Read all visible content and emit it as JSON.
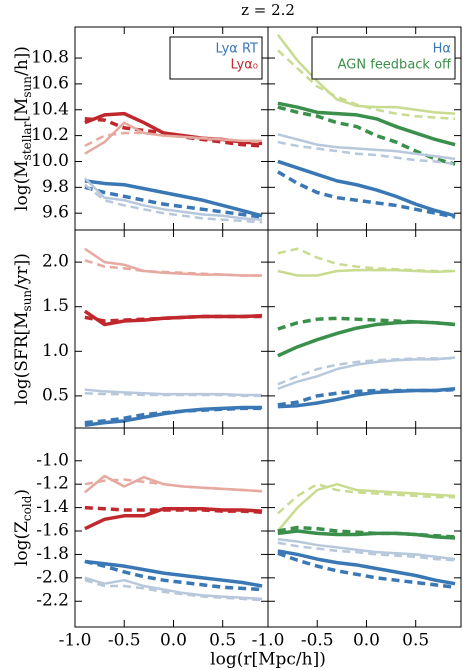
{
  "title": "z = 2.2",
  "xlabel": "log(r[Mpc/h])",
  "chart_data": [
    {
      "type": "line",
      "ylabel": [
        "log(M",
        "stellar",
        "[M",
        "sun",
        "/h])"
      ],
      "legend": "upper right",
      "x": [
        -0.9,
        -0.7,
        -0.5,
        -0.3,
        -0.1,
        0.1,
        0.3,
        0.5,
        0.7,
        0.9
      ],
      "xlim": [
        -1,
        0.96
      ],
      "xticks": [
        -0.5,
        0,
        0.5
      ],
      "ylim": [
        9.47,
        11.04
      ],
      "yticks": [
        10.8,
        10.6,
        10.4,
        10.2,
        {
          "value": 10,
          "label": "10.0"
        },
        9.8,
        9.6
      ],
      "series": [
        {
          "name": "Lyα RT",
          "color": "#3a78b5",
          "dashed": false,
          "linewidth": 3.5,
          "values": [
            9.85,
            9.83,
            9.82,
            9.79,
            9.76,
            9.73,
            9.7,
            9.66,
            9.62,
            9.58
          ]
        },
        {
          "name": "Lyα₀",
          "color": "#c0282d",
          "dashed": false,
          "linewidth": 3.5,
          "values": [
            10.3,
            10.36,
            10.37,
            10.3,
            10.22,
            10.2,
            10.18,
            10.17,
            10.15,
            10.14
          ]
        },
        {
          "color": "#c0282d",
          "dashed": true,
          "linewidth": 3.5,
          "values": [
            10.33,
            10.32,
            10.26,
            10.24,
            10.22,
            10.19,
            10.17,
            10.15,
            10.13,
            10.12
          ]
        },
        {
          "color": "#e6a9a0",
          "dashed": false,
          "linewidth": 2.5,
          "values": [
            10.06,
            10.15,
            10.3,
            10.22,
            10.2,
            10.19,
            10.18,
            10.17,
            10.16,
            10.16
          ]
        },
        {
          "color": "#e6a9a0",
          "dashed": true,
          "linewidth": 2.5,
          "values": [
            10.12,
            10.2,
            10.22,
            10.22,
            10.2,
            10.19,
            10.18,
            10.17,
            10.16,
            10.15
          ]
        },
        {
          "color": "#3a78b5",
          "dashed": true,
          "linewidth": 3.5,
          "values": [
            9.8,
            9.76,
            9.73,
            9.7,
            9.67,
            9.65,
            9.63,
            9.61,
            9.59,
            9.57
          ]
        },
        {
          "color": "#b8c8dc",
          "dashed": false,
          "linewidth": 2.5,
          "values": [
            9.87,
            9.72,
            9.7,
            9.66,
            9.63,
            9.61,
            9.59,
            9.58,
            9.56,
            9.55
          ]
        },
        {
          "color": "#b8c8dc",
          "dashed": true,
          "linewidth": 2.5,
          "values": [
            9.82,
            9.7,
            9.66,
            9.63,
            9.6,
            9.58,
            9.56,
            9.55,
            9.54,
            9.53
          ]
        }
      ]
    },
    {
      "type": "line",
      "legend": "upper right",
      "x": [
        -0.9,
        -0.7,
        -0.5,
        -0.3,
        -0.1,
        0.1,
        0.3,
        0.5,
        0.7,
        0.9
      ],
      "xlim": [
        -1,
        0.96
      ],
      "xticks": [
        -0.5,
        0,
        0.5
      ],
      "ylim": [
        9.47,
        11.04
      ],
      "yticks": [
        10.8,
        10.6,
        10.4,
        10.2,
        10,
        9.8,
        9.6
      ],
      "series": [
        {
          "name": "Hα",
          "color": "#3a78b5",
          "dashed": false,
          "linewidth": 3.5,
          "values": [
            10,
            9.95,
            9.9,
            9.85,
            9.82,
            9.78,
            9.73,
            9.67,
            9.62,
            9.58
          ]
        },
        {
          "name": "AGN feedback off",
          "color": "#3a8f4a",
          "dashed": false,
          "linewidth": 3.5,
          "values": [
            10.45,
            10.42,
            10.38,
            10.37,
            10.36,
            10.33,
            10.27,
            10.22,
            10.17,
            10.13
          ]
        },
        {
          "color": "#c8dc90",
          "dashed": false,
          "linewidth": 2.5,
          "values": [
            10.98,
            10.78,
            10.62,
            10.48,
            10.43,
            10.42,
            10.42,
            10.4,
            10.38,
            10.37
          ]
        },
        {
          "color": "#c8dc90",
          "dashed": true,
          "linewidth": 2.5,
          "values": [
            10.86,
            10.72,
            10.58,
            10.5,
            10.44,
            10.4,
            10.37,
            10.35,
            10.34,
            10.33
          ]
        },
        {
          "color": "#3a8f4a",
          "dashed": true,
          "linewidth": 3.5,
          "values": [
            10.42,
            10.38,
            10.35,
            10.3,
            10.27,
            10.2,
            10.15,
            10.08,
            10.02,
            9.98
          ]
        },
        {
          "color": "#b8c8dc",
          "dashed": false,
          "linewidth": 2.5,
          "values": [
            10.21,
            10.17,
            10.13,
            10.11,
            10.1,
            10.09,
            10.08,
            10.06,
            10.04,
            10.02
          ]
        },
        {
          "color": "#b8c8dc",
          "dashed": true,
          "linewidth": 2.5,
          "values": [
            10.15,
            10.12,
            10.1,
            10.08,
            10.06,
            10.05,
            10.03,
            10.01,
            10,
            9.98
          ]
        },
        {
          "color": "#3a78b5",
          "dashed": true,
          "linewidth": 3.5,
          "values": [
            9.92,
            9.83,
            9.76,
            9.72,
            9.7,
            9.68,
            9.66,
            9.63,
            9.6,
            9.57
          ]
        }
      ]
    },
    {
      "type": "line",
      "ylabel": [
        "log(SFR[M",
        "sun",
        "/yr])"
      ],
      "x": [
        -0.9,
        -0.7,
        -0.5,
        -0.3,
        -0.1,
        0.1,
        0.3,
        0.5,
        0.7,
        0.9
      ],
      "xlim": [
        -1,
        0.96
      ],
      "xticks": [
        -0.5,
        0,
        0.5
      ],
      "ylim": [
        0.14,
        2.36
      ],
      "yticks": [
        {
          "value": 2,
          "label": "2.0"
        },
        1.5,
        {
          "value": 1,
          "label": "1.0"
        },
        0.5
      ],
      "series": [
        {
          "color": "#e6a9a0",
          "dashed": false,
          "linewidth": 2.5,
          "values": [
            2.15,
            2,
            1.97,
            1.9,
            1.88,
            1.87,
            1.86,
            1.86,
            1.85,
            1.85
          ]
        },
        {
          "color": "#e6a9a0",
          "dashed": true,
          "linewidth": 2.5,
          "values": [
            2.02,
            1.95,
            1.93,
            1.9,
            1.89,
            1.88,
            1.87,
            1.86,
            1.85,
            1.85
          ]
        },
        {
          "color": "#c0282d",
          "dashed": false,
          "linewidth": 3.5,
          "values": [
            1.45,
            1.3,
            1.34,
            1.35,
            1.37,
            1.38,
            1.39,
            1.39,
            1.39,
            1.4
          ]
        },
        {
          "color": "#c0282d",
          "dashed": true,
          "linewidth": 3.5,
          "values": [
            1.38,
            1.34,
            1.35,
            1.36,
            1.37,
            1.38,
            1.39,
            1.39,
            1.39,
            1.39
          ]
        },
        {
          "color": "#b8c8dc",
          "dashed": false,
          "linewidth": 2.5,
          "values": [
            0.57,
            0.55,
            0.54,
            0.53,
            0.52,
            0.52,
            0.52,
            0.52,
            0.51,
            0.51
          ]
        },
        {
          "color": "#b8c8dc",
          "dashed": true,
          "linewidth": 2.5,
          "values": [
            0.53,
            0.52,
            0.52,
            0.51,
            0.51,
            0.51,
            0.51,
            0.51,
            0.5,
            0.5
          ]
        },
        {
          "color": "#3a78b5",
          "dashed": false,
          "linewidth": 3.5,
          "values": [
            0.17,
            0.2,
            0.22,
            0.26,
            0.3,
            0.33,
            0.35,
            0.36,
            0.37,
            0.37
          ]
        },
        {
          "color": "#3a78b5",
          "dashed": true,
          "linewidth": 3.5,
          "values": [
            0.2,
            0.22,
            0.25,
            0.29,
            0.31,
            0.33,
            0.34,
            0.35,
            0.36,
            0.36
          ]
        }
      ]
    },
    {
      "type": "line",
      "x": [
        -0.9,
        -0.7,
        -0.5,
        -0.3,
        -0.1,
        0.1,
        0.3,
        0.5,
        0.7,
        0.9
      ],
      "xlim": [
        -1,
        0.96
      ],
      "xticks": [
        -0.5,
        0,
        0.5
      ],
      "ylim": [
        0.14,
        2.36
      ],
      "yticks": [
        2,
        1.5,
        1,
        0.5
      ],
      "series": [
        {
          "color": "#c8dc90",
          "dashed": false,
          "linewidth": 2.5,
          "values": [
            1.9,
            1.85,
            1.85,
            1.9,
            1.91,
            1.91,
            1.91,
            1.9,
            1.89,
            1.9
          ]
        },
        {
          "color": "#c8dc90",
          "dashed": true,
          "linewidth": 2.5,
          "values": [
            2.1,
            2.15,
            2.05,
            1.98,
            1.95,
            1.93,
            1.92,
            1.91,
            1.9,
            1.9
          ]
        },
        {
          "color": "#3a8f4a",
          "dashed": false,
          "linewidth": 3.5,
          "values": [
            0.95,
            1.05,
            1.13,
            1.2,
            1.26,
            1.3,
            1.32,
            1.33,
            1.32,
            1.3
          ]
        },
        {
          "color": "#3a8f4a",
          "dashed": true,
          "linewidth": 3.5,
          "values": [
            1.25,
            1.32,
            1.36,
            1.37,
            1.36,
            1.35,
            1.34,
            1.33,
            1.32,
            1.3
          ]
        },
        {
          "color": "#b8c8dc",
          "dashed": false,
          "linewidth": 2.5,
          "values": [
            0.58,
            0.66,
            0.72,
            0.8,
            0.85,
            0.88,
            0.9,
            0.91,
            0.91,
            0.93
          ]
        },
        {
          "color": "#b8c8dc",
          "dashed": true,
          "linewidth": 2.5,
          "values": [
            0.63,
            0.72,
            0.8,
            0.85,
            0.88,
            0.9,
            0.91,
            0.92,
            0.92,
            0.92
          ]
        },
        {
          "color": "#3a78b5",
          "dashed": false,
          "linewidth": 3.5,
          "values": [
            0.38,
            0.39,
            0.42,
            0.46,
            0.51,
            0.54,
            0.55,
            0.56,
            0.56,
            0.58
          ]
        },
        {
          "color": "#3a78b5",
          "dashed": true,
          "linewidth": 3.5,
          "values": [
            0.4,
            0.43,
            0.5,
            0.53,
            0.55,
            0.56,
            0.56,
            0.56,
            0.56,
            0.57
          ]
        }
      ]
    },
    {
      "type": "line",
      "ylabel": [
        "log(Z",
        "cold",
        ")"
      ],
      "x": [
        -0.9,
        -0.7,
        -0.5,
        -0.3,
        -0.1,
        0.1,
        0.3,
        0.5,
        0.7,
        0.9
      ],
      "xlim": [
        -1,
        0.96
      ],
      "xticks": [
        {
          "value": -1,
          "label": "-1.0"
        },
        -0.5,
        {
          "value": 0,
          "label": "0.0"
        },
        0.5
      ],
      "ylim": [
        -2.42,
        -0.72
      ],
      "yticks": [
        {
          "value": -1,
          "label": "-1.0"
        },
        -1.2,
        -1.4,
        -1.6,
        -1.8,
        {
          "value": -2,
          "label": "-2.0"
        },
        -2.2
      ],
      "series": [
        {
          "color": "#e6a9a0",
          "dashed": false,
          "linewidth": 2.5,
          "values": [
            -1.27,
            -1.13,
            -1.22,
            -1.14,
            -1.2,
            -1.22,
            -1.23,
            -1.24,
            -1.25,
            -1.26
          ]
        },
        {
          "color": "#e6a9a0",
          "dashed": true,
          "linewidth": 2.5,
          "values": [
            -1.2,
            -1.17,
            -1.16,
            -1.18,
            -1.2,
            -1.22,
            -1.23,
            -1.24,
            -1.25,
            -1.26
          ]
        },
        {
          "color": "#c0282d",
          "dashed": false,
          "linewidth": 3.5,
          "values": [
            -1.58,
            -1.5,
            -1.47,
            -1.47,
            -1.41,
            -1.41,
            -1.41,
            -1.42,
            -1.42,
            -1.43
          ]
        },
        {
          "color": "#c0282d",
          "dashed": true,
          "linewidth": 3.5,
          "values": [
            -1.4,
            -1.41,
            -1.42,
            -1.42,
            -1.42,
            -1.42,
            -1.42,
            -1.43,
            -1.43,
            -1.44
          ]
        },
        {
          "color": "#3a78b5",
          "dashed": false,
          "linewidth": 3.5,
          "values": [
            -1.86,
            -1.88,
            -1.9,
            -1.93,
            -1.96,
            -1.98,
            -2,
            -2.02,
            -2.04,
            -2.07
          ]
        },
        {
          "color": "#3a78b5",
          "dashed": true,
          "linewidth": 3.5,
          "values": [
            -1.86,
            -1.9,
            -1.95,
            -1.99,
            -2.02,
            -2.04,
            -2.06,
            -2.08,
            -2.09,
            -2.1
          ]
        },
        {
          "color": "#b8c8dc",
          "dashed": false,
          "linewidth": 2.5,
          "values": [
            -2,
            -2.05,
            -2.02,
            -2.07,
            -2.1,
            -2.13,
            -2.15,
            -2.16,
            -2.17,
            -2.18
          ]
        },
        {
          "color": "#b8c8dc",
          "dashed": true,
          "linewidth": 2.5,
          "values": [
            -2.02,
            -2.07,
            -2.07,
            -2.09,
            -2.12,
            -2.14,
            -2.16,
            -2.17,
            -2.18,
            -2.19
          ]
        }
      ]
    },
    {
      "type": "line",
      "x": [
        -0.9,
        -0.7,
        -0.5,
        -0.3,
        -0.1,
        0.1,
        0.3,
        0.5,
        0.7,
        0.9
      ],
      "xlim": [
        -1,
        0.96
      ],
      "xticks": [
        {
          "value": -1,
          "label": "-1.0"
        },
        -0.5,
        {
          "value": 0,
          "label": "0.0"
        },
        0.5
      ],
      "ylim": [
        -2.42,
        -0.72
      ],
      "yticks": [
        -1,
        -1.2,
        -1.4,
        -1.6,
        -1.8,
        -2,
        -2.2
      ],
      "series": [
        {
          "color": "#c8dc90",
          "dashed": false,
          "linewidth": 2.5,
          "values": [
            -1.6,
            -1.4,
            -1.25,
            -1.2,
            -1.25,
            -1.26,
            -1.27,
            -1.28,
            -1.29,
            -1.3
          ]
        },
        {
          "color": "#c8dc90",
          "dashed": true,
          "linewidth": 2.5,
          "values": [
            -1.45,
            -1.3,
            -1.2,
            -1.25,
            -1.27,
            -1.28,
            -1.29,
            -1.3,
            -1.31,
            -1.31
          ]
        },
        {
          "color": "#3a8f4a",
          "dashed": false,
          "linewidth": 3.5,
          "values": [
            -1.62,
            -1.6,
            -1.62,
            -1.63,
            -1.63,
            -1.62,
            -1.62,
            -1.63,
            -1.65,
            -1.66
          ]
        },
        {
          "color": "#3a8f4a",
          "dashed": true,
          "linewidth": 3.5,
          "values": [
            -1.6,
            -1.57,
            -1.58,
            -1.6,
            -1.61,
            -1.62,
            -1.62,
            -1.63,
            -1.64,
            -1.65
          ]
        },
        {
          "color": "#b8c8dc",
          "dashed": false,
          "linewidth": 2.5,
          "values": [
            -1.67,
            -1.69,
            -1.72,
            -1.74,
            -1.76,
            -1.78,
            -1.79,
            -1.8,
            -1.82,
            -1.84
          ]
        },
        {
          "color": "#b8c8dc",
          "dashed": true,
          "linewidth": 2.5,
          "values": [
            -1.7,
            -1.73,
            -1.75,
            -1.77,
            -1.78,
            -1.8,
            -1.81,
            -1.82,
            -1.84,
            -1.85
          ]
        },
        {
          "color": "#3a78b5",
          "dashed": false,
          "linewidth": 3.5,
          "values": [
            -1.77,
            -1.8,
            -1.84,
            -1.87,
            -1.89,
            -1.92,
            -1.95,
            -1.98,
            -2.02,
            -2.05
          ]
        },
        {
          "color": "#3a78b5",
          "dashed": true,
          "linewidth": 3.5,
          "values": [
            -1.79,
            -1.85,
            -1.9,
            -1.94,
            -1.97,
            -2,
            -2.02,
            -2.04,
            -2.06,
            -2.08
          ]
        }
      ]
    }
  ]
}
